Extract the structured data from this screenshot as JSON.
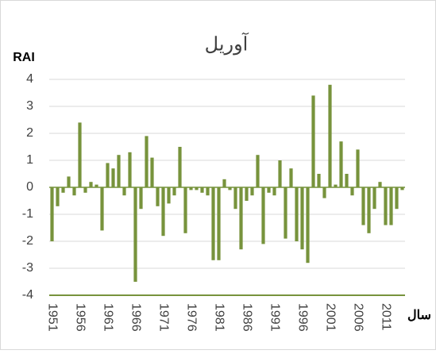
{
  "chart_data": {
    "type": "bar",
    "title": "آوریل",
    "y_label": "RAI",
    "x_label": "سال",
    "categories": [
      "1951",
      null,
      null,
      null,
      null,
      "1956",
      null,
      null,
      null,
      null,
      "1961",
      null,
      null,
      null,
      null,
      "1966",
      null,
      null,
      null,
      null,
      "1971",
      null,
      null,
      null,
      null,
      "1976",
      null,
      null,
      null,
      null,
      "1981",
      null,
      null,
      null,
      null,
      "1986",
      null,
      null,
      null,
      null,
      "1991",
      null,
      null,
      null,
      null,
      "1996",
      null,
      null,
      null,
      null,
      "2001",
      null,
      null,
      null,
      null,
      "2006",
      null,
      null,
      null,
      null,
      "2011",
      null,
      null,
      null
    ],
    "values": [
      -2.0,
      -0.7,
      -0.2,
      0.4,
      -0.3,
      2.4,
      -0.2,
      0.2,
      0.1,
      -1.6,
      0.9,
      0.7,
      1.2,
      -0.3,
      1.3,
      -3.5,
      -0.8,
      1.9,
      1.1,
      -0.7,
      -1.8,
      -0.6,
      -0.3,
      1.5,
      -1.7,
      -0.1,
      -0.1,
      -0.2,
      -0.3,
      -2.7,
      -2.7,
      0.3,
      -0.1,
      -0.8,
      -2.3,
      -0.5,
      -0.3,
      1.2,
      -2.1,
      -0.2,
      -0.3,
      1.0,
      -1.9,
      0.7,
      -2.0,
      -2.3,
      -2.8,
      3.4,
      0.5,
      -0.4,
      3.8,
      0.1,
      1.7,
      0.5,
      -0.3,
      1.4,
      -1.4,
      -1.7,
      -0.8,
      0.2,
      -1.4,
      -1.4,
      -0.8,
      -0.1
    ],
    "color": "#77933c",
    "ylim": [
      -4,
      4
    ],
    "yticks": [
      -4,
      -3,
      -2,
      -1,
      0,
      1,
      2,
      3,
      4
    ],
    "grid": true
  }
}
